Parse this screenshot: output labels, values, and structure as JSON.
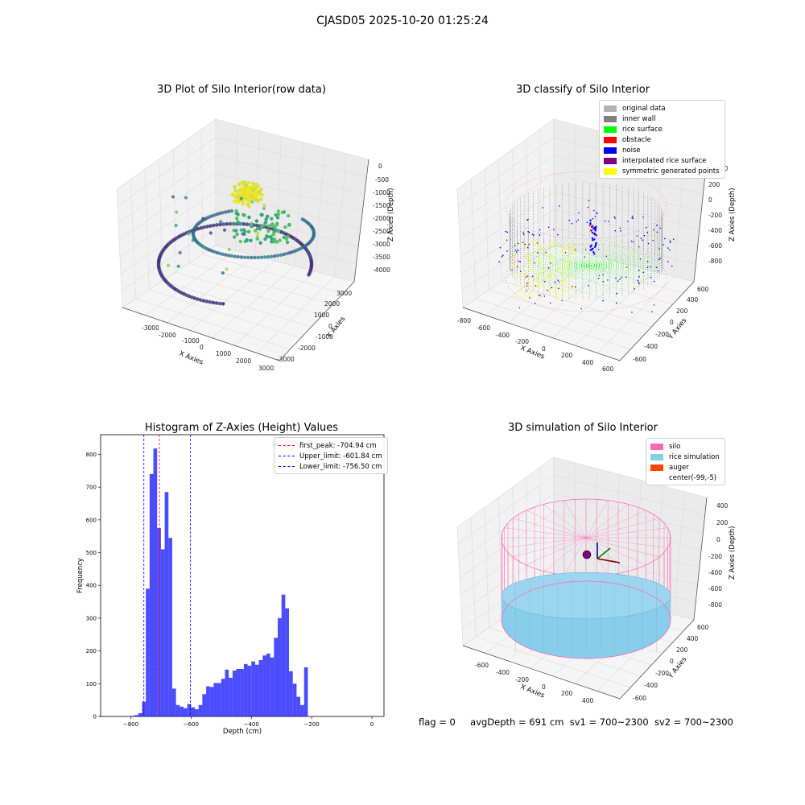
{
  "figure": {
    "suptitle": "CJASD05 2025-10-20 01:25:24",
    "status": {
      "flag": "flag = 0",
      "avg": "avgDepth = 691 cm",
      "sv1": "sv1 = 700~2300",
      "sv2": "sv2 = 700~2300"
    }
  },
  "chart_data": [
    {
      "type": "scatter",
      "projection": "3d",
      "title": "3D Plot of Silo Interior(row data)",
      "xlabel": "X Axies",
      "ylabel": "Y Axies",
      "zlabel": "Z Axies (Depth)",
      "xticks": [
        "-3000",
        "-2000",
        "-1000",
        "0",
        "1000",
        "2000",
        "3000"
      ],
      "yticks": [
        "-3000",
        "-2000",
        "-1000",
        "0",
        "1000",
        "2000",
        "3000"
      ],
      "zticks": [
        "0",
        "-500",
        "-1000",
        "-1500",
        "-2000",
        "-2500",
        "-3000",
        "-3500",
        "-4000"
      ],
      "xlim": [
        -3500,
        3500
      ],
      "ylim": [
        -3500,
        3500
      ],
      "zlim": [
        -4300,
        200
      ],
      "colormap": "viridis (by depth)",
      "grid": true
    },
    {
      "type": "scatter",
      "projection": "3d",
      "title": "3D classify of Silo Interior",
      "xlabel": "X Axies",
      "ylabel": "Y Axies",
      "zlabel": "Z Axies (Depth)",
      "xticks": [
        "-800",
        "-600",
        "-400",
        "-200",
        "0",
        "200",
        "400",
        "600"
      ],
      "yticks": [
        "-600",
        "-400",
        "-200",
        "0",
        "200",
        "400",
        "600"
      ],
      "zticks": [
        "400",
        "200",
        "0",
        "-200",
        "-400",
        "-600",
        "-800"
      ],
      "legend_position": "upper right",
      "legend": [
        {
          "label": "original data",
          "color": "#b3b3b3"
        },
        {
          "label": "inner wall",
          "color": "#808080"
        },
        {
          "label": "rice surface",
          "color": "#00ff00"
        },
        {
          "label": "obstacle",
          "color": "#ff0000"
        },
        {
          "label": "noise",
          "color": "#0000ff"
        },
        {
          "label": "interpolated rice surface",
          "color": "#800080"
        },
        {
          "label": "symmetric generated points",
          "color": "#ffff00"
        }
      ],
      "grid": true
    },
    {
      "type": "bar",
      "title": "Histogram of Z-Axies (Height) Values",
      "xlabel": "Depth (cm)",
      "ylabel": "Frequency",
      "bar_color": "#0000ff",
      "bin_width": 12.5,
      "bin_start": -800,
      "values": [
        2,
        4,
        10,
        45,
        390,
        740,
        818,
        575,
        510,
        685,
        545,
        85,
        35,
        30,
        25,
        38,
        28,
        22,
        35,
        68,
        92,
        90,
        102,
        102,
        115,
        143,
        118,
        140,
        145,
        145,
        160,
        155,
        168,
        158,
        172,
        186,
        192,
        180,
        240,
        300,
        372,
        330,
        138,
        100,
        60,
        35,
        150
      ],
      "xticks": [
        -800,
        -600,
        -400,
        -200,
        0
      ],
      "yticks": [
        0,
        100,
        200,
        300,
        400,
        500,
        600,
        700,
        800
      ],
      "xlim": [
        -900,
        40
      ],
      "ylim": [
        0,
        860
      ],
      "lines": [
        {
          "label": "first_peak: -704.94 cm",
          "x": -704.94,
          "color": "#ff0000"
        },
        {
          "label": "Upper_limit: -601.84 cm",
          "x": -601.84,
          "color": "#0000ff"
        },
        {
          "label": "Lower_limit: -756.50 cm",
          "x": -756.5,
          "color": "#0000ff"
        }
      ],
      "legend_position": "upper right"
    },
    {
      "type": "surface",
      "projection": "3d",
      "title": "3D simulation of Silo Interior",
      "xlabel": "X Axies",
      "ylabel": "Y Axies",
      "zlabel": "Z Axies (Depth)",
      "xticks": [
        "-600",
        "-400",
        "-200",
        "0",
        "200",
        "400"
      ],
      "yticks": [
        "-600",
        "-400",
        "-200",
        "0",
        "200",
        "400",
        "600"
      ],
      "zticks": [
        "400",
        "200",
        "0",
        "-200",
        "-400",
        "-600",
        "-800"
      ],
      "legend_position": "upper right",
      "legend": [
        {
          "label": "silo",
          "color": "#ff69b4"
        },
        {
          "label": "rice simulation",
          "color": "#87ceeb"
        },
        {
          "label": "auger",
          "color": "#ff4500"
        },
        {
          "label": "center(-99,-5)",
          "color": ""
        }
      ],
      "grid": true
    }
  ]
}
